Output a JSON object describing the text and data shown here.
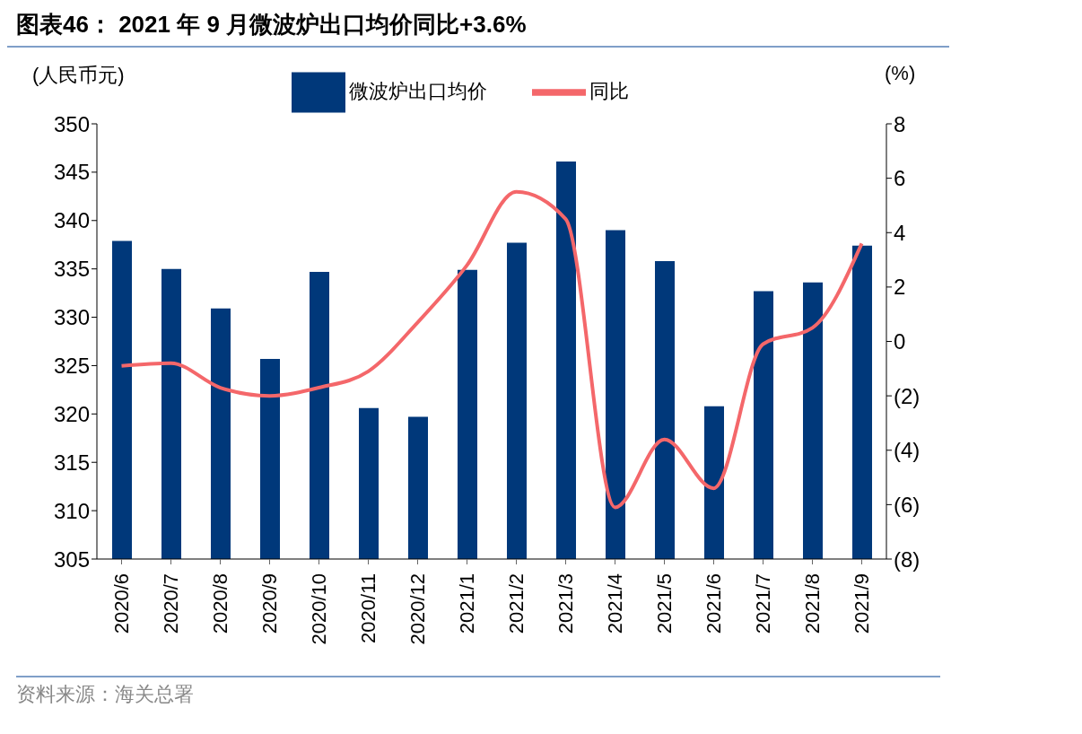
{
  "chart_data": {
    "type": "bar",
    "title": "图表46：  2021 年 9 月微波炉出口均价同比+3.6%",
    "ylabel": "(人民币元)",
    "y2label": "(%)",
    "categories": [
      "2020/6",
      "2020/7",
      "2020/8",
      "2020/9",
      "2020/10",
      "2020/11",
      "2020/12",
      "2021/1",
      "2021/2",
      "2021/3",
      "2021/4",
      "2021/5",
      "2021/6",
      "2021/7",
      "2021/8",
      "2021/9"
    ],
    "series": [
      {
        "name": "微波炉出口均价",
        "color": "#00387a",
        "values": [
          337.9,
          335.0,
          330.9,
          325.7,
          334.7,
          320.6,
          319.7,
          334.9,
          337.7,
          346.1,
          339.0,
          335.8,
          320.8,
          332.7,
          333.6,
          337.4
        ]
      },
      {
        "name": "同比",
        "type": "line",
        "axis": "y2",
        "color": "#f4676a",
        "values": [
          -0.9,
          -0.8,
          -1.7,
          -2.0,
          -1.7,
          -1.1,
          0.7,
          2.8,
          5.5,
          4.5,
          -6.1,
          -3.6,
          -5.4,
          -0.1,
          0.5,
          3.6
        ]
      }
    ],
    "ylim": [
      305,
      350
    ],
    "yticks": [
      305,
      310,
      315,
      320,
      325,
      330,
      335,
      340,
      345,
      350
    ],
    "y2lim": [
      -8,
      8
    ],
    "y2ticks": [
      {
        "value": -8,
        "label": "(8)"
      },
      {
        "value": -6,
        "label": "(6)"
      },
      {
        "value": -4,
        "label": "(4)"
      },
      {
        "value": -2,
        "label": "(2)"
      },
      0,
      2,
      4,
      6,
      8
    ],
    "legend": "top",
    "grid": false,
    "marker": "none",
    "line_style": "solid",
    "annotations": [
      "资料来源：海关总署"
    ]
  }
}
